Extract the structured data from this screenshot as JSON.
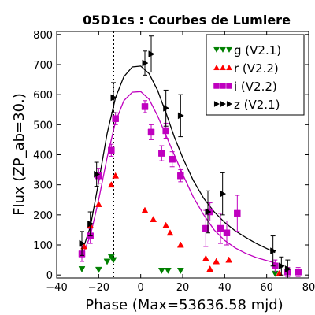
{
  "chart_data": {
    "type": "scatter",
    "title": "05D1cs : Courbes de Lumiere",
    "xlabel": "Phase (Max=53636.58 mjd)",
    "ylabel": "Flux (ZP_ab=30.)",
    "xlim": [
      -40,
      80
    ],
    "ylim": [
      -10,
      810
    ],
    "x_ticks": [
      -40,
      -20,
      0,
      20,
      40,
      60,
      80
    ],
    "y_ticks": [
      0,
      100,
      200,
      300,
      400,
      500,
      600,
      700,
      800
    ],
    "x_tick_labels": [
      "−40",
      "−20",
      "0",
      "20",
      "40",
      "60",
      "80"
    ],
    "y_tick_labels": [
      "0",
      "100",
      "200",
      "300",
      "400",
      "500",
      "600",
      "700",
      "800"
    ],
    "grid": false,
    "legend_position": "top-right",
    "vline": {
      "x": -13,
      "style": "dotted"
    },
    "series": [
      {
        "name": "g (V2.1)",
        "color": "#008000",
        "marker": "triangle-down",
        "points": [
          {
            "x": -28,
            "y": 20
          },
          {
            "x": -20,
            "y": 18
          },
          {
            "x": -16,
            "y": 45
          },
          {
            "x": -14,
            "y": 60
          },
          {
            "x": -13,
            "y": 50
          },
          {
            "x": 10,
            "y": 15
          },
          {
            "x": 13,
            "y": 15
          },
          {
            "x": 19,
            "y": 15
          },
          {
            "x": 64,
            "y": 5
          }
        ]
      },
      {
        "name": "r (V2.2)",
        "color": "#ff0000",
        "marker": "triangle-up",
        "points": [
          {
            "x": -27,
            "y": 95
          },
          {
            "x": -24,
            "y": 165
          },
          {
            "x": -20,
            "y": 235
          },
          {
            "x": -14,
            "y": 300
          },
          {
            "x": -12,
            "y": 330
          },
          {
            "x": 2,
            "y": 215
          },
          {
            "x": 6,
            "y": 185
          },
          {
            "x": 12,
            "y": 165
          },
          {
            "x": 14,
            "y": 140
          },
          {
            "x": 19,
            "y": 100
          },
          {
            "x": 31,
            "y": 55
          },
          {
            "x": 33,
            "y": 20
          },
          {
            "x": 36,
            "y": 45
          },
          {
            "x": 42,
            "y": 50
          },
          {
            "x": 66,
            "y": 5
          }
        ]
      },
      {
        "name": "i (V2.2)",
        "color": "#bf00bf",
        "marker": "square",
        "points": [
          {
            "x": -28,
            "y": 70,
            "err": 25
          },
          {
            "x": -24,
            "y": 130,
            "err": 25
          },
          {
            "x": -20,
            "y": 330,
            "err": 25
          },
          {
            "x": -14,
            "y": 415,
            "err": 20
          },
          {
            "x": -12,
            "y": 520,
            "err": 20
          },
          {
            "x": 2,
            "y": 560,
            "err": 20
          },
          {
            "x": 5,
            "y": 475,
            "err": 25
          },
          {
            "x": 10,
            "y": 405,
            "err": 25
          },
          {
            "x": 12,
            "y": 480,
            "err": 25
          },
          {
            "x": 15,
            "y": 385,
            "err": 25
          },
          {
            "x": 19,
            "y": 330,
            "err": 20
          },
          {
            "x": 31,
            "y": 155,
            "err": 60
          },
          {
            "x": 33,
            "y": 210,
            "err": 30
          },
          {
            "x": 38,
            "y": 155,
            "err": 50
          },
          {
            "x": 41,
            "y": 140,
            "err": 40
          },
          {
            "x": 46,
            "y": 205,
            "err": 60
          },
          {
            "x": 64,
            "y": 30,
            "err": 20
          },
          {
            "x": 70,
            "y": 10,
            "err": 15
          },
          {
            "x": 75,
            "y": 10,
            "err": 15
          }
        ]
      },
      {
        "name": "z (V2.1)",
        "color": "#000000",
        "marker": "triangle-right",
        "points": [
          {
            "x": -28,
            "y": 105,
            "err": 40
          },
          {
            "x": -24,
            "y": 170,
            "err": 40
          },
          {
            "x": -21,
            "y": 335,
            "err": 40
          },
          {
            "x": -13,
            "y": 590,
            "err": 50
          },
          {
            "x": 2,
            "y": 705,
            "err": 40
          },
          {
            "x": 5,
            "y": 735,
            "err": 60
          },
          {
            "x": 12,
            "y": 555,
            "err": 60
          },
          {
            "x": 19,
            "y": 530,
            "err": 70
          },
          {
            "x": 32,
            "y": 210,
            "err": 70
          },
          {
            "x": 39,
            "y": 270,
            "err": 70
          },
          {
            "x": 63,
            "y": 80,
            "err": 50
          },
          {
            "x": 67,
            "y": 30,
            "err": 30
          },
          {
            "x": 70,
            "y": 20,
            "err": 30
          }
        ]
      }
    ],
    "fit_curves": [
      {
        "color": "#000000",
        "points": [
          {
            "x": -28,
            "y": 75
          },
          {
            "x": -24,
            "y": 160
          },
          {
            "x": -20,
            "y": 310
          },
          {
            "x": -16,
            "y": 470
          },
          {
            "x": -12,
            "y": 590
          },
          {
            "x": -8,
            "y": 660
          },
          {
            "x": -4,
            "y": 692
          },
          {
            "x": 0,
            "y": 695
          },
          {
            "x": 4,
            "y": 670
          },
          {
            "x": 8,
            "y": 615
          },
          {
            "x": 12,
            "y": 540
          },
          {
            "x": 16,
            "y": 460
          },
          {
            "x": 20,
            "y": 390
          },
          {
            "x": 25,
            "y": 315
          },
          {
            "x": 30,
            "y": 255
          },
          {
            "x": 35,
            "y": 210
          },
          {
            "x": 40,
            "y": 175
          },
          {
            "x": 45,
            "y": 147
          },
          {
            "x": 50,
            "y": 125
          },
          {
            "x": 55,
            "y": 105
          },
          {
            "x": 60,
            "y": 88
          },
          {
            "x": 64,
            "y": 75
          }
        ]
      },
      {
        "color": "#bf00bf",
        "points": [
          {
            "x": -28,
            "y": 60
          },
          {
            "x": -24,
            "y": 130
          },
          {
            "x": -20,
            "y": 250
          },
          {
            "x": -16,
            "y": 390
          },
          {
            "x": -12,
            "y": 510
          },
          {
            "x": -8,
            "y": 580
          },
          {
            "x": -4,
            "y": 608
          },
          {
            "x": 0,
            "y": 610
          },
          {
            "x": 4,
            "y": 585
          },
          {
            "x": 8,
            "y": 530
          },
          {
            "x": 12,
            "y": 465
          },
          {
            "x": 16,
            "y": 400
          },
          {
            "x": 20,
            "y": 335
          },
          {
            "x": 25,
            "y": 260
          },
          {
            "x": 30,
            "y": 200
          },
          {
            "x": 35,
            "y": 150
          },
          {
            "x": 40,
            "y": 115
          },
          {
            "x": 45,
            "y": 90
          },
          {
            "x": 50,
            "y": 72
          },
          {
            "x": 55,
            "y": 58
          },
          {
            "x": 60,
            "y": 48
          },
          {
            "x": 64,
            "y": 40
          }
        ]
      }
    ]
  }
}
